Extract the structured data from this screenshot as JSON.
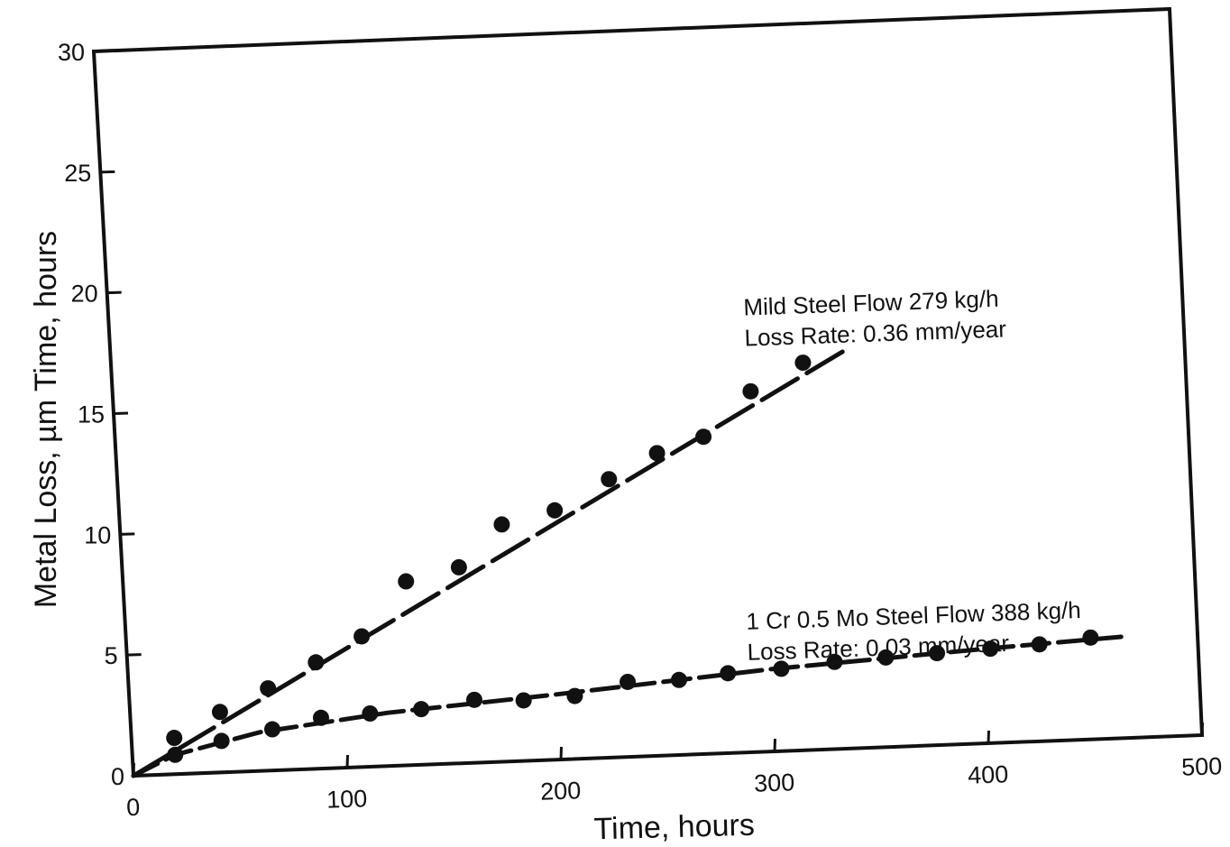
{
  "chart_data": {
    "type": "scatter",
    "xlabel": "Time, hours",
    "ylabel": "Metal Loss, µm Time, hours",
    "xlim": [
      0,
      500
    ],
    "ylim": [
      0,
      30
    ],
    "x_ticks": [
      "0",
      "100",
      "200",
      "300",
      "400",
      "500"
    ],
    "y_ticks": [
      "0",
      "5",
      "10",
      "15",
      "20",
      "25",
      "30"
    ],
    "grid": false,
    "series": [
      {
        "name": "Mild Steel Flow 279 kg/h",
        "color": "#111111",
        "points": [
          [
            20,
            1.5
          ],
          [
            42,
            2.5
          ],
          [
            65,
            3.4
          ],
          [
            88,
            4.4
          ],
          [
            110,
            5.4
          ],
          [
            132,
            7.6
          ],
          [
            157,
            8.1
          ],
          [
            178,
            9.8
          ],
          [
            203,
            10.3
          ],
          [
            229,
            11.5
          ],
          [
            252,
            12.5
          ],
          [
            274,
            13.1
          ],
          [
            297,
            14.9
          ],
          [
            322,
            16.0
          ]
        ],
        "fit_line": [
          [
            0,
            0
          ],
          [
            345,
            16.6
          ]
        ]
      },
      {
        "name": "1 Cr 0.5 Mo Steel Flow 388 kg/h",
        "color": "#111111",
        "points": [
          [
            20,
            0.8
          ],
          [
            42,
            1.3
          ],
          [
            66,
            1.7
          ],
          [
            89,
            2.1
          ],
          [
            112,
            2.2
          ],
          [
            136,
            2.3
          ],
          [
            161,
            2.6
          ],
          [
            184,
            2.5
          ],
          [
            208,
            2.6
          ],
          [
            233,
            3.1
          ],
          [
            257,
            3.1
          ],
          [
            280,
            3.3
          ],
          [
            305,
            3.4
          ],
          [
            330,
            3.6
          ],
          [
            354,
            3.7
          ],
          [
            378,
            3.8
          ],
          [
            403,
            3.9
          ],
          [
            426,
            4.0
          ],
          [
            450,
            4.2
          ]
        ],
        "fit_line": [
          [
            0,
            0
          ],
          [
            20,
            0.8
          ],
          [
            60,
            1.6
          ],
          [
            120,
            2.2
          ],
          [
            200,
            2.7
          ],
          [
            300,
            3.4
          ],
          [
            400,
            3.9
          ],
          [
            468,
            4.2
          ]
        ]
      }
    ],
    "annotations": [
      {
        "line1": "Mild Steel Flow 279 kg/h",
        "line2": "Loss Rate: 0.36 mm/year"
      },
      {
        "line1": "1 Cr 0.5 Mo Steel Flow 388 kg/h",
        "line2": "Loss Rate: 0.03 mm/year"
      }
    ]
  }
}
